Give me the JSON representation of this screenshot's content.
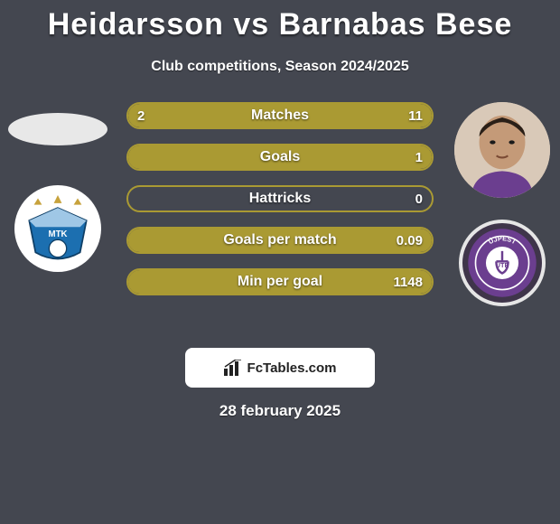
{
  "background_color": "#444750",
  "title": {
    "text": "Heidarsson vs Barnabas Bese",
    "fontsize": 34,
    "color": "#ffffff"
  },
  "subtitle": {
    "text": "Club competitions, Season 2024/2025",
    "fontsize": 16,
    "color": "#ffffff"
  },
  "players": {
    "left": {
      "name": "Heidarsson",
      "avatar_bg": "#e8e8e8"
    },
    "right": {
      "name": "Barnabas Bese",
      "avatar_bg": "#d9c9b8"
    }
  },
  "crests": {
    "left": {
      "bg": "#ffffff",
      "primary": "#1c6fb0",
      "accent": "#c7a23c"
    },
    "right": {
      "bg": "#3f354a",
      "ring": "#e6e6e6",
      "primary": "#6b3e8f"
    }
  },
  "stats": {
    "bar_color": "#aa9a33",
    "border_color": "#aa9a33",
    "track_color": "transparent",
    "label_fontsize": 16,
    "value_fontsize": 15,
    "rows": [
      {
        "label": "Matches",
        "left": "2",
        "right": "11",
        "left_pct": 15,
        "right_pct": 85
      },
      {
        "label": "Goals",
        "left": "",
        "right": "1",
        "left_pct": 0,
        "right_pct": 100
      },
      {
        "label": "Hattricks",
        "left": "",
        "right": "0",
        "left_pct": 0,
        "right_pct": 0
      },
      {
        "label": "Goals per match",
        "left": "",
        "right": "0.09",
        "left_pct": 0,
        "right_pct": 100
      },
      {
        "label": "Min per goal",
        "left": "",
        "right": "1148",
        "left_pct": 0,
        "right_pct": 100
      }
    ]
  },
  "attribution": {
    "text": "FcTables.com",
    "bg": "#ffffff",
    "color": "#222222"
  },
  "date": {
    "text": "28 february 2025",
    "fontsize": 17,
    "color": "#ffffff"
  }
}
